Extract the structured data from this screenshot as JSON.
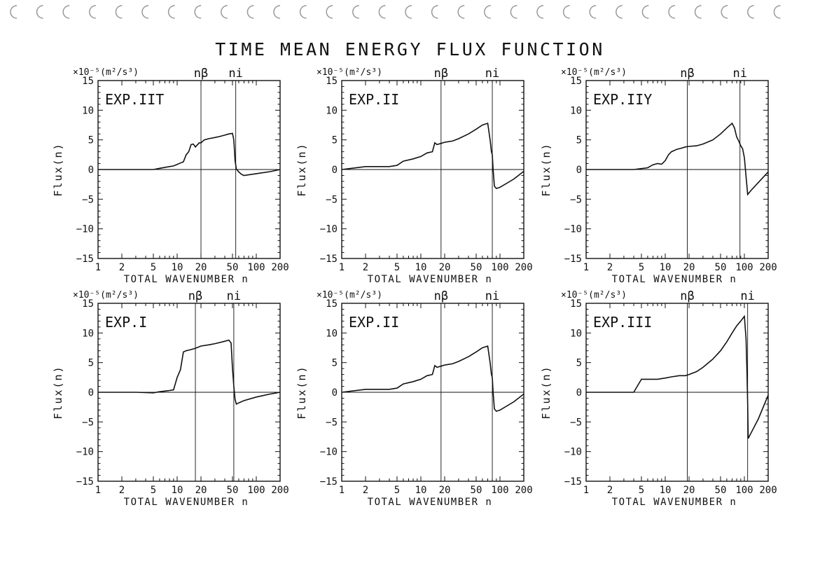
{
  "page": {
    "title": "TIME MEAN ENERGY FLUX FUNCTION"
  },
  "common": {
    "unit_label": "×10⁻⁵(m²/s³)",
    "ylabel": "Flux(n)",
    "xlabel": "TOTAL WAVENUMBER n",
    "n_beta_label": "nβ",
    "n_i_label": "ni",
    "xticks": [
      1,
      2,
      5,
      10,
      20,
      50,
      100,
      200
    ],
    "yticks": [
      15,
      10,
      5,
      0,
      -5,
      -10,
      -15
    ]
  },
  "chart_data": [
    {
      "type": "line",
      "title": "EXP.IIT",
      "xlabel": "TOTAL WAVENUMBER n",
      "ylabel": "Flux(n)",
      "xscale": "log",
      "xlim": [
        1,
        200
      ],
      "ylim": [
        -15,
        15
      ],
      "vlines": [
        20,
        55
      ],
      "series": [
        {
          "name": "Flux",
          "x": [
            1,
            3,
            5,
            6,
            8,
            9,
            11,
            12,
            13,
            14,
            15,
            16,
            17,
            19,
            20,
            22,
            25,
            30,
            35,
            40,
            45,
            50,
            52,
            54,
            56,
            60,
            65,
            70,
            80,
            100,
            150,
            200
          ],
          "y": [
            0,
            0,
            0,
            0.2,
            0.5,
            0.6,
            1.1,
            1.3,
            2.5,
            3.0,
            4.2,
            4.3,
            3.8,
            4.5,
            4.5,
            5.0,
            5.2,
            5.4,
            5.6,
            5.8,
            6.0,
            6.1,
            5.0,
            1.5,
            0.1,
            -0.4,
            -0.8,
            -1.0,
            -0.9,
            -0.7,
            -0.35,
            0
          ]
        }
      ]
    },
    {
      "type": "line",
      "title": "EXP.II",
      "xlabel": "TOTAL WAVENUMBER n",
      "ylabel": "Flux(n)",
      "xscale": "log",
      "xlim": [
        1,
        200
      ],
      "ylim": [
        -15,
        15
      ],
      "vlines": [
        18,
        80
      ],
      "series": [
        {
          "name": "Flux",
          "x": [
            1,
            2,
            4,
            5,
            6,
            8,
            10,
            12,
            14,
            15,
            16,
            18,
            20,
            25,
            30,
            40,
            50,
            60,
            70,
            75,
            78,
            80,
            82,
            85,
            90,
            100,
            150,
            200
          ],
          "y": [
            0,
            0.5,
            0.5,
            0.7,
            1.4,
            1.8,
            2.2,
            2.8,
            3.0,
            4.5,
            4.2,
            4.4,
            4.6,
            4.8,
            5.2,
            6.0,
            6.8,
            7.5,
            7.8,
            5.0,
            3.0,
            2.5,
            0,
            -2.8,
            -3.2,
            -3.0,
            -1.6,
            -0.3
          ]
        }
      ]
    },
    {
      "type": "line",
      "title": "EXP.IIY",
      "xlabel": "TOTAL WAVENUMBER n",
      "ylabel": "Flux(n)",
      "xscale": "log",
      "xlim": [
        1,
        200
      ],
      "ylim": [
        -15,
        15
      ],
      "vlines": [
        19,
        88
      ],
      "series": [
        {
          "name": "Flux",
          "x": [
            1,
            4,
            6,
            7,
            8,
            9,
            10,
            11,
            12,
            14,
            16,
            18,
            20,
            25,
            30,
            40,
            50,
            60,
            70,
            75,
            80,
            85,
            90,
            95,
            100,
            110,
            120,
            150,
            200
          ],
          "y": [
            0,
            0,
            0.3,
            0.8,
            1.0,
            0.9,
            1.5,
            2.5,
            3.0,
            3.4,
            3.6,
            3.8,
            3.9,
            4.0,
            4.3,
            5.0,
            6.0,
            7.0,
            7.8,
            7.0,
            5.5,
            4.8,
            4.0,
            3.5,
            2.0,
            -4.2,
            -3.6,
            -2.2,
            -0.4
          ]
        }
      ]
    },
    {
      "type": "line",
      "title": "EXP.I",
      "xlabel": "TOTAL WAVENUMBER n",
      "ylabel": "Flux(n)",
      "xscale": "log",
      "xlim": [
        1,
        200
      ],
      "ylim": [
        -15,
        15
      ],
      "vlines": [
        17,
        52
      ],
      "series": [
        {
          "name": "Flux",
          "x": [
            1,
            3,
            5,
            6,
            7,
            8,
            9,
            10,
            11,
            12,
            13,
            14,
            15,
            17,
            20,
            25,
            30,
            40,
            45,
            48,
            50,
            52,
            54,
            56,
            60,
            70,
            100,
            150,
            200
          ],
          "y": [
            0,
            0,
            -0.1,
            0.1,
            0.2,
            0.3,
            0.4,
            2.5,
            3.8,
            6.8,
            7.0,
            7.1,
            7.2,
            7.4,
            7.8,
            8.0,
            8.2,
            8.6,
            8.8,
            8.3,
            4.0,
            1.0,
            -1.2,
            -2.0,
            -1.8,
            -1.4,
            -0.8,
            -0.3,
            0
          ]
        }
      ]
    },
    {
      "type": "line",
      "title": "EXP.II",
      "xlabel": "TOTAL WAVENUMBER n",
      "ylabel": "Flux(n)",
      "xscale": "log",
      "xlim": [
        1,
        200
      ],
      "ylim": [
        -15,
        15
      ],
      "vlines": [
        18,
        80
      ],
      "series": [
        {
          "name": "Flux",
          "x": [
            1,
            2,
            4,
            5,
            6,
            8,
            10,
            12,
            14,
            15,
            16,
            18,
            20,
            25,
            30,
            40,
            50,
            60,
            70,
            75,
            78,
            80,
            82,
            85,
            90,
            100,
            150,
            200
          ],
          "y": [
            0,
            0.5,
            0.5,
            0.7,
            1.4,
            1.8,
            2.2,
            2.8,
            3.0,
            4.5,
            4.2,
            4.4,
            4.6,
            4.8,
            5.2,
            6.0,
            6.8,
            7.5,
            7.8,
            5.0,
            3.0,
            2.5,
            0,
            -2.8,
            -3.2,
            -3.0,
            -1.6,
            -0.3
          ]
        }
      ]
    },
    {
      "type": "line",
      "title": "EXP.III",
      "xlabel": "TOTAL WAVENUMBER n",
      "ylabel": "Flux(n)",
      "xscale": "log",
      "xlim": [
        1,
        200
      ],
      "ylim": [
        -15,
        15
      ],
      "vlines": [
        19,
        110
      ],
      "series": [
        {
          "name": "Flux",
          "x": [
            1,
            2,
            3,
            4,
            5,
            6,
            8,
            10,
            12,
            15,
            18,
            20,
            25,
            30,
            40,
            50,
            60,
            70,
            80,
            90,
            100,
            105,
            108,
            110,
            112,
            120,
            150,
            200
          ],
          "y": [
            0,
            0,
            0,
            0,
            2.2,
            2.2,
            2.2,
            2.4,
            2.6,
            2.8,
            2.8,
            3.0,
            3.5,
            4.2,
            5.6,
            7.0,
            8.5,
            10.0,
            11.2,
            12.0,
            12.8,
            9.0,
            3.0,
            -2.0,
            -7.8,
            -7.0,
            -4.5,
            -0.5
          ]
        }
      ]
    }
  ]
}
